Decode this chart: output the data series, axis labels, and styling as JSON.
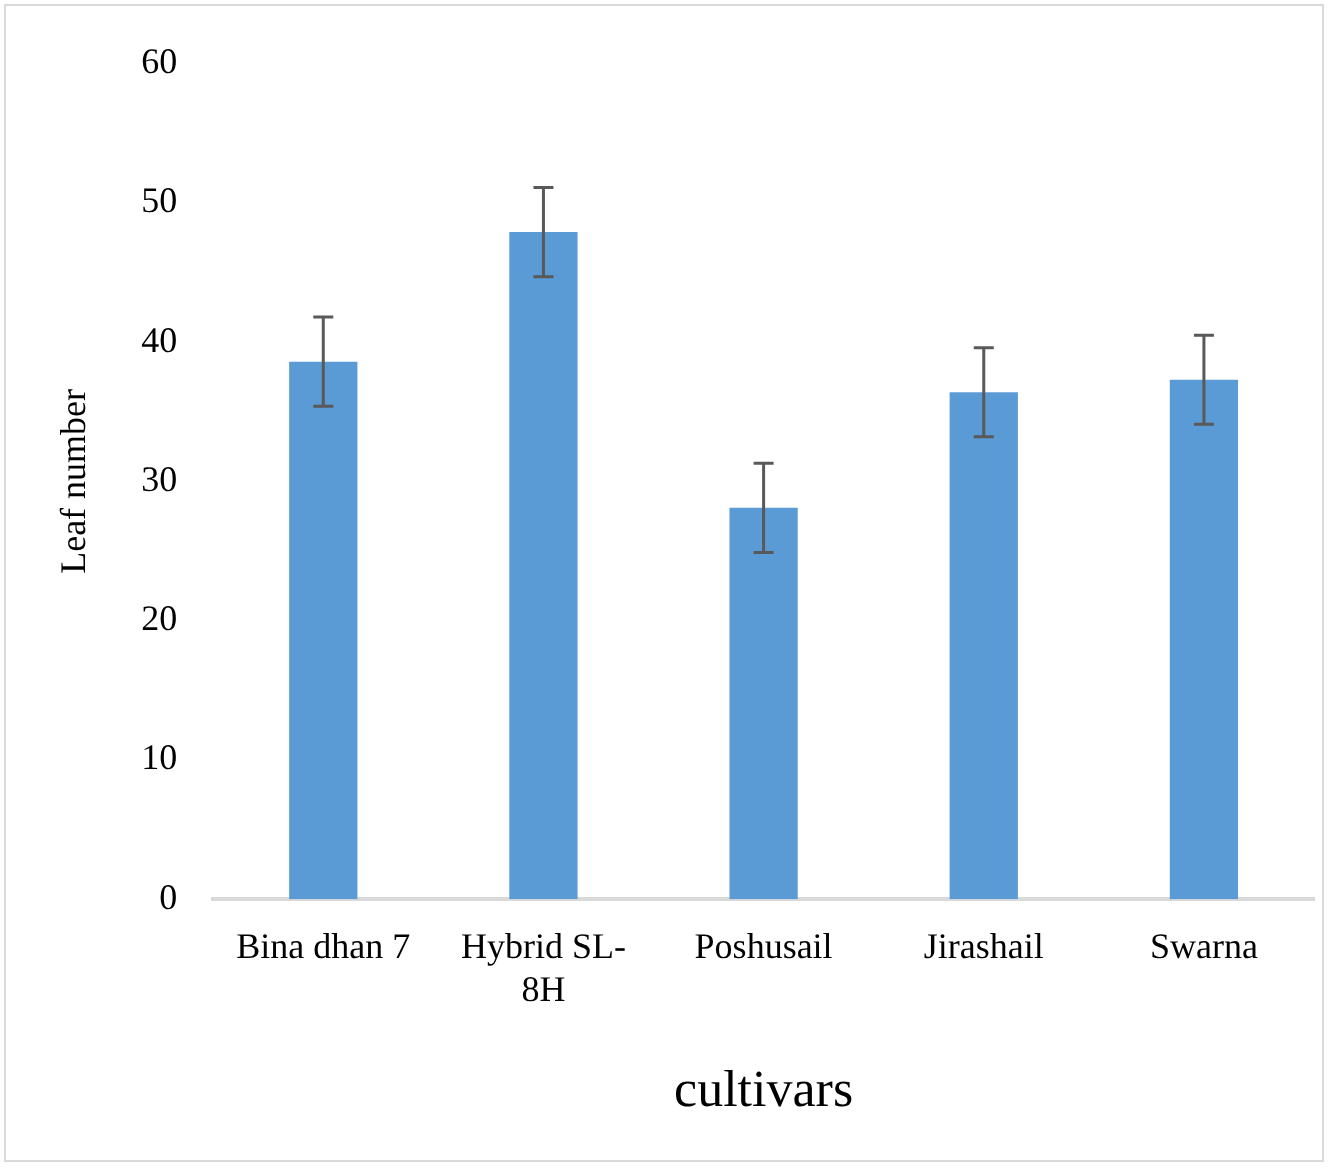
{
  "chart_data": {
    "type": "bar",
    "xlabel": "cultivars",
    "ylabel": "Leaf number",
    "categories": [
      "Bina dhan 7",
      "Hybrid SL-8H",
      "Poshusail",
      "Jirashail",
      "Swarna"
    ],
    "values": [
      38.6,
      47.9,
      28.1,
      36.4,
      37.3
    ],
    "errors": [
      3.2,
      3.2,
      3.2,
      3.2,
      3.2
    ],
    "color": "#5b9bd5",
    "ylim": [
      0,
      60
    ],
    "yticks": [
      0,
      10,
      20,
      30,
      40,
      50,
      60
    ],
    "grid": false,
    "legend": false
  }
}
